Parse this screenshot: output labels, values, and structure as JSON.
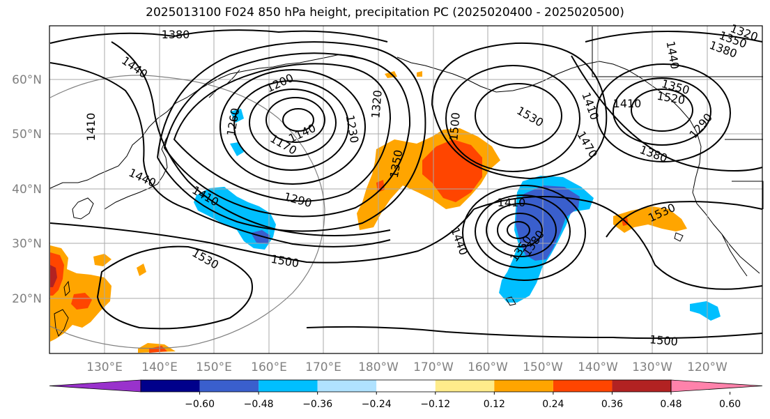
{
  "title": "2025013100 F024 850 hPa height, precipitation PC (2025020400 - 2025020500)",
  "lat_labels": [
    "60°N",
    "50°N",
    "40°N",
    "30°N",
    "20°N"
  ],
  "lon_labels": [
    "130°E",
    "140°E",
    "150°E",
    "160°E",
    "170°E",
    "180°W",
    "170°W",
    "160°W",
    "150°W",
    "140°W",
    "130°W",
    "120°W"
  ],
  "colorbar": {
    "ticks": [
      "−0.60",
      "−0.48",
      "−0.36",
      "−0.24",
      "−0.12",
      "0.12",
      "0.24",
      "0.36",
      "0.48",
      "0.60"
    ],
    "colors": [
      "#9932cc",
      "#00008b",
      "#3a5fcd",
      "#00bfff",
      "#b0e2ff",
      "#ffffff",
      "#ffec8b",
      "#ffa500",
      "#ff4500",
      "#b22222",
      "#ff82ab"
    ]
  },
  "contour_labels": [
    "1380",
    "1440",
    "1410",
    "1440",
    "1410",
    "1290",
    "1200",
    "1260",
    "1170",
    "1140",
    "1230",
    "1320",
    "1350",
    "1500",
    "1530",
    "1500",
    "1530",
    "1410",
    "1470",
    "1440",
    "1410",
    "1350",
    "1380",
    "1410",
    "1440",
    "1520",
    "1350",
    "1290",
    "1380",
    "1530",
    "1350",
    "1320",
    "1380",
    "1500"
  ],
  "colors": {
    "contour": "#000000",
    "grid": "#aaaaaa",
    "ring": "#808080"
  }
}
